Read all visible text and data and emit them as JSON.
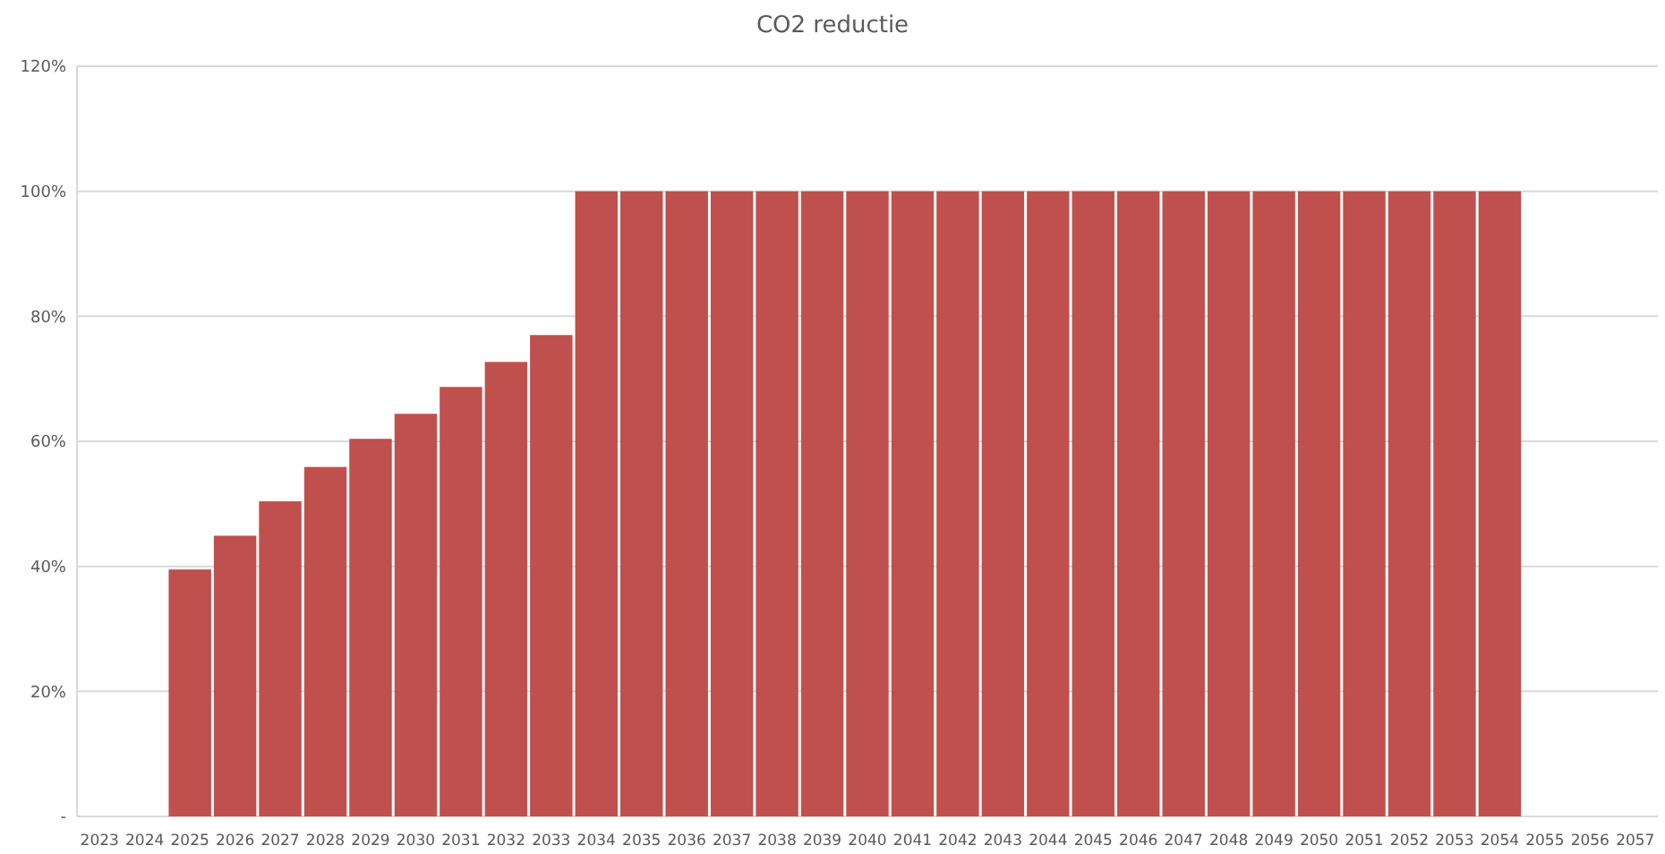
{
  "chart_data": {
    "type": "bar",
    "title": "CO2 reductie",
    "categories": [
      "2023",
      "2024",
      "2025",
      "2026",
      "2027",
      "2028",
      "2029",
      "2030",
      "2031",
      "2032",
      "2033",
      "2034",
      "2035",
      "2036",
      "2037",
      "2038",
      "2039",
      "2040",
      "2041",
      "2042",
      "2043",
      "2044",
      "2045",
      "2046",
      "2047",
      "2048",
      "2049",
      "2050",
      "2051",
      "2052",
      "2053",
      "2054",
      "2055",
      "2056",
      "2057"
    ],
    "values": [
      null,
      null,
      39.5,
      44.9,
      50.4,
      55.9,
      60.4,
      64.4,
      68.7,
      72.7,
      77.0,
      100,
      100,
      100,
      100,
      100,
      100,
      100,
      100,
      100,
      100,
      100,
      100,
      100,
      100,
      100,
      100,
      100,
      100,
      100,
      100,
      100,
      null,
      null,
      null
    ],
    "color": "#c0504d",
    "ylim": [
      0,
      120
    ],
    "yticks": [
      {
        "value": 0,
        "label": "-"
      },
      {
        "value": 20,
        "label": "20%"
      },
      {
        "value": 40,
        "label": "40%"
      },
      {
        "value": 60,
        "label": "60%"
      },
      {
        "value": 80,
        "label": "80%"
      },
      {
        "value": 100,
        "label": "100%"
      },
      {
        "value": 120,
        "label": "120%"
      }
    ],
    "grid": "y"
  }
}
